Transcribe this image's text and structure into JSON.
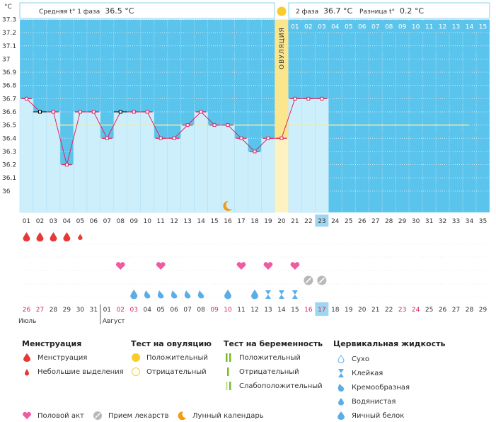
{
  "header": {
    "unit_label": "°C",
    "phase1_label": "Средняя t° 1 фаза",
    "phase1_value": "36.5 °C",
    "phase2_label": "2 фаза",
    "phase2_value": "36.7 °C",
    "diff_label": "Разница t°",
    "diff_value": "0.2 °C"
  },
  "colors": {
    "bg_blue": "#5bc4ec",
    "bar": "#cdeefb",
    "ovulation": "#fbe68e",
    "line": "#e0245e",
    "coverline": "#f2e9a0",
    "today": "#9fd6f0",
    "menstruation": "#e53935",
    "sex": "#ef5ba1",
    "pill": "#b8b8b8",
    "moon": "#f39c12",
    "mucus": "#5aaee8",
    "test_positive": "#7dbb2a"
  },
  "chart_data": {
    "type": "line",
    "title": "",
    "xlabel": "",
    "ylabel": "°C",
    "ylim": [
      36.0,
      37.3
    ],
    "yticks": [
      "37.3",
      "37.2",
      "37.1",
      "37",
      "36.9",
      "36.8",
      "36.7",
      "36.6",
      "36.5",
      "36.4",
      "36.3",
      "36.2",
      "36.1",
      "36"
    ],
    "cycle_days": [
      "01",
      "02",
      "03",
      "04",
      "05",
      "06",
      "07",
      "08",
      "09",
      "10",
      "11",
      "12",
      "13",
      "14",
      "15",
      "16",
      "17",
      "18",
      "19",
      "20",
      "21",
      "22",
      "23",
      "24",
      "25",
      "26",
      "27",
      "28",
      "29",
      "30",
      "31",
      "32",
      "33",
      "34",
      "35"
    ],
    "temperatures": [
      36.7,
      36.6,
      36.6,
      36.2,
      36.6,
      36.6,
      36.4,
      36.6,
      36.6,
      36.6,
      36.4,
      36.4,
      36.5,
      36.6,
      36.5,
      36.5,
      36.4,
      36.3,
      36.4,
      36.4,
      36.7,
      36.7,
      36.7
    ],
    "hollow_marker_days": [
      2,
      8
    ],
    "coverline": 36.5,
    "ovulation_day": 20,
    "ovulation_label": "ОВУЛЯЦИЯ",
    "post_ovulation_days": [
      "01",
      "02",
      "03",
      "04",
      "05",
      "06",
      "07",
      "08",
      "09",
      "10",
      "11",
      "12",
      "13",
      "14",
      "15"
    ],
    "today_day": 23
  },
  "rows": {
    "menstruation": [
      {
        "day": 1,
        "size": "big"
      },
      {
        "day": 2,
        "size": "big"
      },
      {
        "day": 3,
        "size": "big"
      },
      {
        "day": 4,
        "size": "big"
      },
      {
        "day": 5,
        "size": "small"
      }
    ],
    "sex_days": [
      8,
      11,
      17,
      19,
      21
    ],
    "pill_days": [
      22,
      23
    ],
    "mucus": [
      {
        "day": 9,
        "type": "egg-white"
      },
      {
        "day": 10,
        "type": "watery"
      },
      {
        "day": 11,
        "type": "watery"
      },
      {
        "day": 12,
        "type": "watery"
      },
      {
        "day": 13,
        "type": "watery"
      },
      {
        "day": 14,
        "type": "watery"
      },
      {
        "day": 16,
        "type": "egg-white"
      },
      {
        "day": 18,
        "type": "egg-white"
      },
      {
        "day": 19,
        "type": "sticky"
      },
      {
        "day": 20,
        "type": "sticky"
      },
      {
        "day": 21,
        "type": "sticky"
      }
    ],
    "moon_day": 16
  },
  "calendar": {
    "dates": [
      "26",
      "27",
      "28",
      "29",
      "30",
      "31",
      "01",
      "02",
      "03",
      "04",
      "05",
      "06",
      "07",
      "08",
      "09",
      "10",
      "11",
      "12",
      "13",
      "14",
      "15",
      "16",
      "17",
      "18",
      "19",
      "20",
      "21",
      "22",
      "23",
      "24",
      "25",
      "26",
      "27",
      "28",
      "29"
    ],
    "red_dates_idx": [
      0,
      1,
      7,
      8,
      14,
      15,
      21,
      22,
      28,
      29
    ],
    "month1": "Июль",
    "month2": "Август",
    "today_idx": 22
  },
  "legend": {
    "menstruation": {
      "title": "Менструация",
      "items": [
        "Менструация",
        "Небольшие выделения"
      ]
    },
    "ovulation_test": {
      "title": "Тест на овуляцию",
      "items": [
        "Положительный",
        "Отрицательный"
      ]
    },
    "pregnancy_test": {
      "title": "Тест на беременность",
      "items": [
        "Положительный",
        "Отрицательный",
        "Слабоположительный"
      ]
    },
    "cervical": {
      "title": "Цервикальная жидкость",
      "items": [
        "Сухо",
        "Клейкая",
        "Кремообразная",
        "Водянистая",
        "Яичный белок"
      ]
    },
    "bottom": {
      "sex": "Половой акт",
      "pill": "Прием лекарств",
      "moon": "Лунный календарь"
    }
  }
}
